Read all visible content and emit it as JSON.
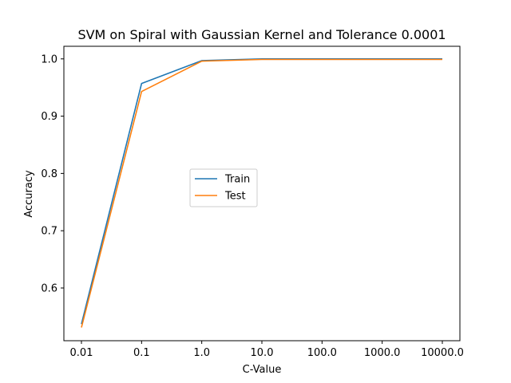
{
  "chart_data": {
    "type": "line",
    "title": "SVM on Spiral with Gaussian Kernel and Tolerance 0.0001",
    "xlabel": "C-Value",
    "ylabel": "Accuracy",
    "categories": [
      "0.01",
      "0.1",
      "1.0",
      "10.0",
      "100.0",
      "1000.0",
      "10000.0"
    ],
    "series": [
      {
        "name": "Train",
        "color": "#1f77b4",
        "values": [
          0.537,
          0.957,
          0.997,
          1.0,
          1.0,
          1.0,
          1.0
        ]
      },
      {
        "name": "Test",
        "color": "#ff7f0e",
        "values": [
          0.531,
          0.943,
          0.996,
          0.999,
          0.999,
          0.999,
          0.999
        ]
      }
    ],
    "ylim": [
      0.508,
      1.022
    ],
    "yticks": [
      "0.6",
      "0.7",
      "0.8",
      "0.9",
      "1.0"
    ],
    "legend_position": "center-left",
    "grid": false
  }
}
